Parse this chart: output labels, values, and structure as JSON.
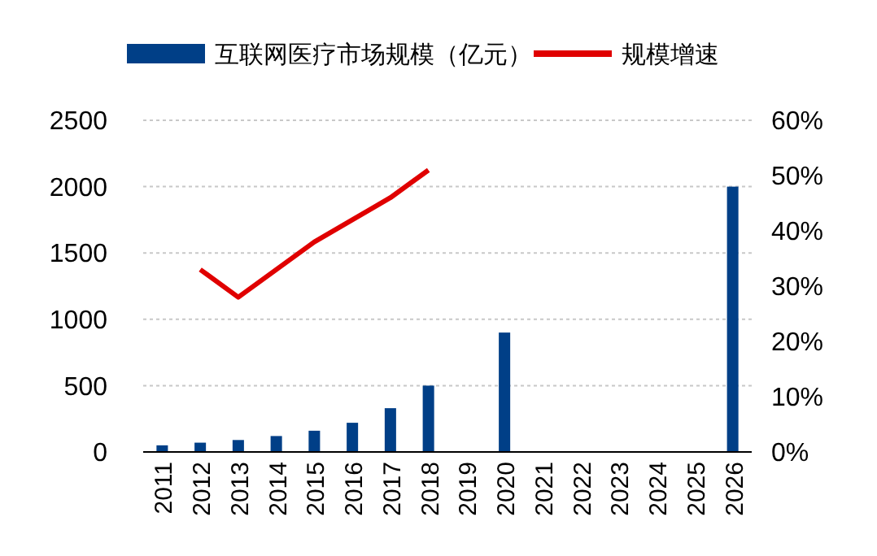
{
  "chart_data": {
    "type": "bar",
    "categories": [
      "2011",
      "2012",
      "2013",
      "2014",
      "2015",
      "2016",
      "2017",
      "2018",
      "2019",
      "2020",
      "2021",
      "2022",
      "2023",
      "2024",
      "2025",
      "2026"
    ],
    "series": [
      {
        "name": "互联网医疗市场规模（亿元）",
        "color": "#003f87",
        "values": [
          50,
          70,
          90,
          120,
          160,
          220,
          330,
          500,
          null,
          900,
          null,
          null,
          null,
          null,
          null,
          2000
        ]
      },
      {
        "name": "规模增速",
        "color": "#e00000",
        "type": "line",
        "axis": "y2",
        "values": [
          null,
          33,
          28,
          33,
          38,
          42,
          46,
          51,
          null,
          null,
          null,
          null,
          null,
          null,
          null,
          null
        ]
      }
    ],
    "ylim": [
      0,
      2500
    ],
    "yticks": [
      0,
      500,
      1000,
      1500,
      2000,
      2500
    ],
    "y2lim": [
      0,
      60
    ],
    "y2ticks": [
      {
        "value": 0,
        "label": "0%"
      },
      {
        "value": 10,
        "label": "10%"
      },
      {
        "value": 20,
        "label": "20%"
      },
      {
        "value": 30,
        "label": "30%"
      },
      {
        "value": 40,
        "label": "40%"
      },
      {
        "value": 50,
        "label": "50%"
      },
      {
        "value": 60,
        "label": "60%"
      }
    ],
    "grid": "y",
    "legend": "top",
    "marker": "none",
    "line_style": "solid"
  }
}
